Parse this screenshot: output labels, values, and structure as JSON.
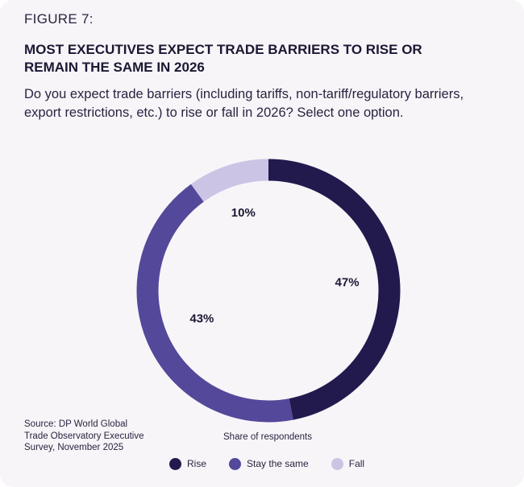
{
  "figure_label": "FIGURE 7:",
  "title": "MOST EXECUTIVES EXPECT TRADE BARRIERS TO RISE OR REMAIN THE SAME IN 2026",
  "question": "Do you expect trade barriers (including tariffs, non-tariff/regulatory barriers, export restrictions, etc.) to rise or fall in 2026? Select one option.",
  "source": "Source: DP World Global Trade Observatory Executive Survey, November 2025",
  "chart_data": {
    "type": "pie",
    "style": "donut",
    "caption": "Share of respondents",
    "slices": [
      {
        "label": "Rise",
        "value": 47,
        "display": "47%",
        "color": "#221a4c"
      },
      {
        "label": "Stay the same",
        "value": 43,
        "display": "43%",
        "color": "#54489a"
      },
      {
        "label": "Fall",
        "value": 10,
        "display": "10%",
        "color": "#cbc4e4"
      }
    ],
    "legend_position": "bottom"
  }
}
